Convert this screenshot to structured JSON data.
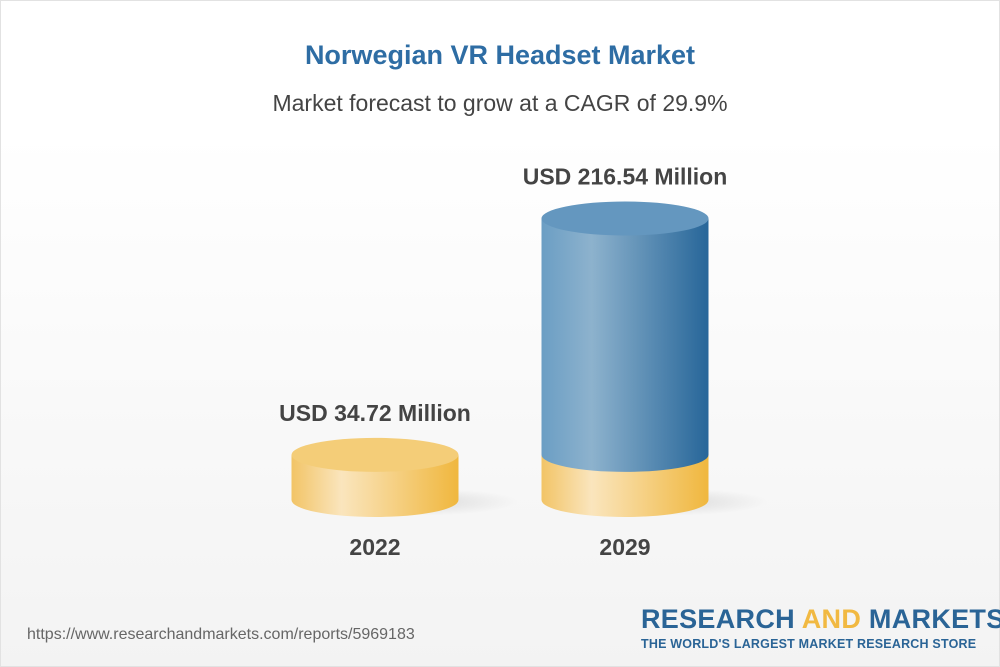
{
  "header": {
    "title": "Norwegian VR Headset Market",
    "subtitle": "Market forecast to grow at a CAGR of 29.9%"
  },
  "chart_data": {
    "type": "bar",
    "style": "3d-cylinder",
    "categories": [
      "2022",
      "2029"
    ],
    "values": [
      34.72,
      216.54
    ],
    "data_labels": [
      "USD 34.72 Million",
      "USD 216.54 Million"
    ],
    "unit": "USD Million",
    "colors": {
      "base": "#f1c15a",
      "growth": "#4a86b5"
    }
  },
  "footer": {
    "url": "https://www.researchandmarkets.com/reports/5969183",
    "logo_part1": "RESEARCH ",
    "logo_and": "AND",
    "logo_part2": " MARKETS",
    "tagline": "THE WORLD'S LARGEST MARKET RESEARCH STORE"
  }
}
